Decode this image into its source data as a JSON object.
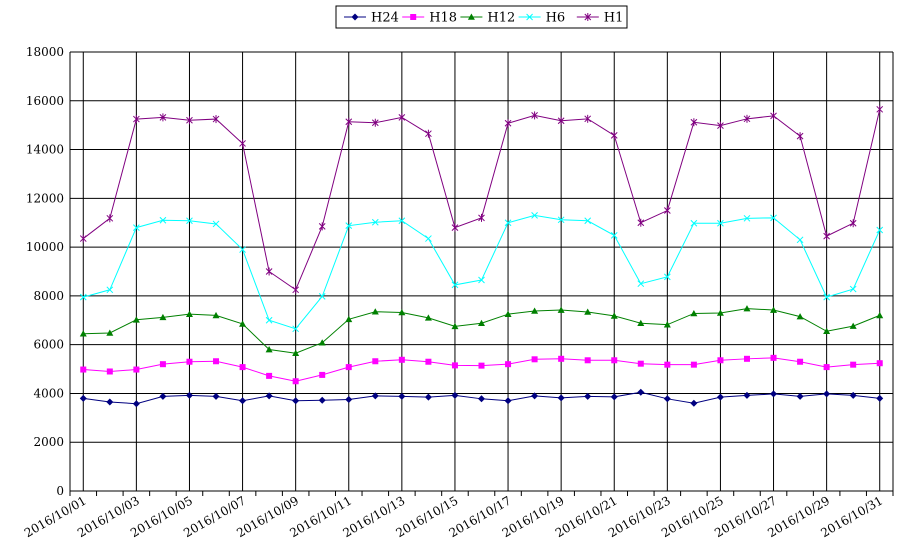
{
  "chart_data": {
    "type": "line",
    "title": "",
    "xlabel": "",
    "ylabel": "",
    "ylim": [
      0,
      18000
    ],
    "yticks": [
      0,
      2000,
      4000,
      6000,
      8000,
      10000,
      12000,
      14000,
      16000,
      18000
    ],
    "grid": true,
    "legend_position": "top-center",
    "categories": [
      "2016/10/01",
      "2016/10/02",
      "2016/10/03",
      "2016/10/04",
      "2016/10/05",
      "2016/10/06",
      "2016/10/07",
      "2016/10/08",
      "2016/10/09",
      "2016/10/10",
      "2016/10/11",
      "2016/10/12",
      "2016/10/13",
      "2016/10/14",
      "2016/10/15",
      "2016/10/16",
      "2016/10/17",
      "2016/10/18",
      "2016/10/19",
      "2016/10/20",
      "2016/10/21",
      "2016/10/22",
      "2016/10/23",
      "2016/10/24",
      "2016/10/25",
      "2016/10/26",
      "2016/10/27",
      "2016/10/28",
      "2016/10/29",
      "2016/10/30",
      "2016/10/31"
    ],
    "tick_labels": [
      "2016/10/01",
      "2016/10/03",
      "2016/10/05",
      "2016/10/07",
      "2016/10/09",
      "2016/10/11",
      "2016/10/13",
      "2016/10/15",
      "2016/10/17",
      "2016/10/19",
      "2016/10/21",
      "2016/10/23",
      "2016/10/25",
      "2016/10/27",
      "2016/10/29",
      "2016/10/31"
    ],
    "series": [
      {
        "name": "H24",
        "color": "#000080",
        "marker": "diamond",
        "values": [
          3800,
          3650,
          3580,
          3880,
          3920,
          3880,
          3700,
          3900,
          3700,
          3720,
          3750,
          3900,
          3880,
          3850,
          3920,
          3780,
          3700,
          3900,
          3820,
          3880,
          3860,
          4050,
          3780,
          3600,
          3850,
          3920,
          3980,
          3880,
          3980,
          3920,
          3800
        ]
      },
      {
        "name": "H18",
        "color": "#ff00ff",
        "marker": "square",
        "values": [
          4980,
          4900,
          4980,
          5200,
          5300,
          5320,
          5080,
          4720,
          4500,
          4760,
          5080,
          5320,
          5380,
          5300,
          5150,
          5140,
          5200,
          5400,
          5420,
          5360,
          5360,
          5220,
          5180,
          5180,
          5360,
          5420,
          5460,
          5300,
          5080,
          5180,
          5240
        ]
      },
      {
        "name": "H12",
        "color": "#008000",
        "marker": "triangle",
        "values": [
          6450,
          6480,
          7020,
          7120,
          7250,
          7200,
          6850,
          5800,
          5650,
          6080,
          7040,
          7350,
          7320,
          7100,
          6750,
          6880,
          7250,
          7380,
          7420,
          7340,
          7180,
          6880,
          6820,
          7280,
          7300,
          7480,
          7420,
          7150,
          6550,
          6760,
          7200
        ]
      },
      {
        "name": "H6",
        "color": "#00ffff",
        "marker": "x",
        "values": [
          7950,
          8250,
          10800,
          11100,
          11080,
          10950,
          9900,
          7000,
          6650,
          7980,
          10880,
          11020,
          11080,
          10350,
          8450,
          8650,
          11000,
          11300,
          11120,
          11080,
          10480,
          8500,
          8780,
          10980,
          10980,
          11180,
          11200,
          10300,
          7950,
          8280,
          10700
        ]
      },
      {
        "name": "H1",
        "color": "#800080",
        "marker": "star",
        "values": [
          10350,
          11180,
          15250,
          15320,
          15200,
          15250,
          14250,
          9000,
          8250,
          10850,
          15140,
          15100,
          15320,
          14650,
          10800,
          11200,
          15080,
          15400,
          15180,
          15260,
          14580,
          11000,
          11500,
          15120,
          14980,
          15260,
          15380,
          14550,
          10450,
          10980,
          15650
        ]
      }
    ]
  }
}
